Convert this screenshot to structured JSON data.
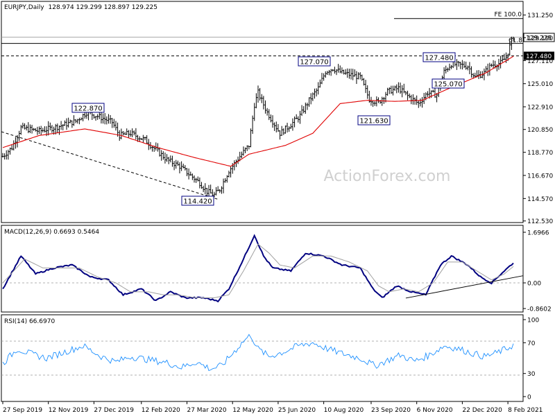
{
  "header": {
    "symbol": "EURJPY,Daily",
    "ohlc": "128.974 129.299 128.897 129.225"
  },
  "watermark": "ActionForex.com",
  "colors": {
    "price": "#000000",
    "sma": "#e00000",
    "macd": "#000080",
    "signal": "#a0a0a0",
    "rsi": "#1e90ff",
    "box_border": "#000080",
    "panel_border": "#000000"
  },
  "chart_data": [
    {
      "type": "bar",
      "panel": "price",
      "ylim": [
        112.53,
        132.0
      ],
      "y_ticks": [
        "131.250",
        "129.190",
        "127.110",
        "125.010",
        "122.910",
        "120.850",
        "118.770",
        "116.670",
        "114.570",
        "112.530"
      ],
      "y_tick_values": [
        131.25,
        129.19,
        127.11,
        125.01,
        122.91,
        120.85,
        118.77,
        116.67,
        114.57,
        112.53
      ],
      "x_ticks": [
        "27 Sep 2019",
        "12 Nov 2019",
        "27 Dec 2019",
        "12 Feb 2020",
        "27 Mar 2020",
        "12 May 2020",
        "25 Jun 2020",
        "10 Aug 2020",
        "23 Sep 2020",
        "6 Nov 2020",
        "22 Dec 2020",
        "8 Feb 2021"
      ],
      "close_anchors": [
        [
          0,
          118.4
        ],
        [
          5,
          119.2
        ],
        [
          10,
          121.0
        ],
        [
          20,
          120.7
        ],
        [
          30,
          121.1
        ],
        [
          40,
          121.6
        ],
        [
          46,
          122.4
        ],
        [
          53,
          122.0
        ],
        [
          60,
          121.5
        ],
        [
          64,
          120.3
        ],
        [
          70,
          120.5
        ],
        [
          78,
          119.9
        ],
        [
          84,
          119.0
        ],
        [
          90,
          118.1
        ],
        [
          97,
          117.5
        ],
        [
          102,
          116.8
        ],
        [
          108,
          116.0
        ],
        [
          112,
          115.2
        ],
        [
          116,
          114.9
        ],
        [
          119,
          115.4
        ],
        [
          124,
          117.1
        ],
        [
          130,
          118.4
        ],
        [
          135,
          119.4
        ],
        [
          138,
          123.1
        ],
        [
          140,
          124.2
        ],
        [
          145,
          122.4
        ],
        [
          152,
          120.5
        ],
        [
          158,
          121.3
        ],
        [
          163,
          122.1
        ],
        [
          168,
          123.5
        ],
        [
          173,
          124.6
        ],
        [
          177,
          126.1
        ],
        [
          181,
          126.4
        ],
        [
          186,
          126.0
        ],
        [
          191,
          125.8
        ],
        [
          196,
          125.6
        ],
        [
          201,
          123.6
        ],
        [
          206,
          123.3
        ],
        [
          211,
          124.3
        ],
        [
          217,
          124.6
        ],
        [
          222,
          123.9
        ],
        [
          228,
          123.2
        ],
        [
          233,
          124.2
        ],
        [
          238,
          124.0
        ],
        [
          242,
          126.1
        ],
        [
          246,
          126.8
        ],
        [
          251,
          126.7
        ],
        [
          255,
          126.6
        ],
        [
          259,
          125.6
        ],
        [
          264,
          126.0
        ],
        [
          268,
          126.7
        ],
        [
          273,
          126.9
        ],
        [
          276,
          127.4
        ],
        [
          279,
          128.9
        ],
        [
          280,
          129.2
        ]
      ],
      "sma_anchors": [
        [
          0,
          119.2
        ],
        [
          20,
          120.3
        ],
        [
          45,
          120.9
        ],
        [
          65,
          120.3
        ],
        [
          85,
          119.2
        ],
        [
          105,
          118.3
        ],
        [
          125,
          117.5
        ],
        [
          135,
          118.6
        ],
        [
          155,
          119.4
        ],
        [
          170,
          120.5
        ],
        [
          185,
          123.2
        ],
        [
          200,
          123.5
        ],
        [
          215,
          123.4
        ],
        [
          230,
          123.5
        ],
        [
          245,
          124.6
        ],
        [
          265,
          126.0
        ],
        [
          280,
          127.5
        ]
      ],
      "annotations": [
        "122.870",
        "114.420",
        "127.070",
        "121.630",
        "127.480",
        "125.070"
      ],
      "right_labels": [
        "129.225",
        "127.480"
      ],
      "fib_label": "FE 100.0",
      "fib_value": 131.05,
      "fib_line2_value": 129.53,
      "fib_small_label": "61.8",
      "hline_values": [
        129.225,
        128.9,
        127.48
      ]
    },
    {
      "type": "line",
      "panel": "macd",
      "title": "MACD(12,26,9) 0.6693 0.5464",
      "ylim": [
        -0.8602,
        1.6966
      ],
      "y_ticks": [
        "1.6966",
        "0.00",
        "-0.8602"
      ],
      "y_tick_values": [
        1.6966,
        0.0,
        -0.8602
      ],
      "series": [
        {
          "values_anchors": [
            [
              0,
              -0.2
            ],
            [
              10,
              0.9
            ],
            [
              18,
              0.3
            ],
            [
              28,
              0.5
            ],
            [
              38,
              0.6
            ],
            [
              48,
              0.2
            ],
            [
              58,
              0.1
            ],
            [
              66,
              -0.4
            ],
            [
              76,
              -0.2
            ],
            [
              84,
              -0.6
            ],
            [
              92,
              -0.3
            ],
            [
              100,
              -0.5
            ],
            [
              110,
              -0.5
            ],
            [
              118,
              -0.6
            ],
            [
              124,
              -0.2
            ],
            [
              132,
              0.8
            ],
            [
              138,
              1.6
            ],
            [
              143,
              0.9
            ],
            [
              148,
              0.5
            ],
            [
              158,
              0.4
            ],
            [
              166,
              1.0
            ],
            [
              176,
              0.9
            ],
            [
              186,
              0.6
            ],
            [
              196,
              0.5
            ],
            [
              203,
              -0.2
            ],
            [
              208,
              -0.5
            ],
            [
              216,
              -0.1
            ],
            [
              224,
              -0.3
            ],
            [
              232,
              -0.4
            ],
            [
              240,
              0.6
            ],
            [
              246,
              0.9
            ],
            [
              255,
              0.6
            ],
            [
              262,
              0.2
            ],
            [
              268,
              0.0
            ],
            [
              275,
              0.4
            ],
            [
              280,
              0.67
            ]
          ]
        },
        {
          "values_anchors": [
            [
              0,
              0.0
            ],
            [
              12,
              0.8
            ],
            [
              22,
              0.5
            ],
            [
              32,
              0.5
            ],
            [
              42,
              0.5
            ],
            [
              52,
              0.2
            ],
            [
              62,
              0.0
            ],
            [
              70,
              -0.3
            ],
            [
              80,
              -0.3
            ],
            [
              88,
              -0.4
            ],
            [
              96,
              -0.4
            ],
            [
              106,
              -0.5
            ],
            [
              116,
              -0.5
            ],
            [
              124,
              -0.4
            ],
            [
              132,
              0.4
            ],
            [
              140,
              1.3
            ],
            [
              146,
              1.0
            ],
            [
              152,
              0.6
            ],
            [
              160,
              0.5
            ],
            [
              170,
              0.9
            ],
            [
              180,
              0.9
            ],
            [
              190,
              0.7
            ],
            [
              200,
              0.4
            ],
            [
              206,
              -0.1
            ],
            [
              212,
              -0.3
            ],
            [
              220,
              -0.2
            ],
            [
              228,
              -0.3
            ],
            [
              236,
              0.0
            ],
            [
              244,
              0.7
            ],
            [
              252,
              0.7
            ],
            [
              260,
              0.4
            ],
            [
              268,
              0.1
            ],
            [
              275,
              0.3
            ],
            [
              280,
              0.55
            ]
          ]
        }
      ],
      "trendline": [
        [
          221,
          -0.51
        ],
        [
          280,
          0.17
        ]
      ]
    },
    {
      "type": "line",
      "panel": "rsi",
      "title": "RSI(14) 66.6970",
      "ylim": [
        0,
        100
      ],
      "y_ticks": [
        "100",
        "70",
        "30",
        "0"
      ],
      "y_tick_values": [
        100,
        70,
        30,
        0
      ],
      "series": [
        {
          "values_anchors": [
            [
              0,
              43
            ],
            [
              8,
              62
            ],
            [
              16,
              55
            ],
            [
              24,
              50
            ],
            [
              34,
              58
            ],
            [
              44,
              66
            ],
            [
              54,
              52
            ],
            [
              62,
              45
            ],
            [
              70,
              52
            ],
            [
              80,
              48
            ],
            [
              90,
              44
            ],
            [
              98,
              38
            ],
            [
              106,
              45
            ],
            [
              114,
              36
            ],
            [
              120,
              40
            ],
            [
              126,
              56
            ],
            [
              132,
              72
            ],
            [
              136,
              80
            ],
            [
              140,
              62
            ],
            [
              146,
              52
            ],
            [
              154,
              58
            ],
            [
              162,
              66
            ],
            [
              170,
              70
            ],
            [
              178,
              62
            ],
            [
              186,
              56
            ],
            [
              196,
              50
            ],
            [
              204,
              40
            ],
            [
              210,
              46
            ],
            [
              218,
              54
            ],
            [
              226,
              46
            ],
            [
              234,
              54
            ],
            [
              242,
              66
            ],
            [
              250,
              62
            ],
            [
              258,
              56
            ],
            [
              264,
              52
            ],
            [
              270,
              56
            ],
            [
              276,
              62
            ],
            [
              280,
              67
            ]
          ]
        }
      ]
    }
  ]
}
